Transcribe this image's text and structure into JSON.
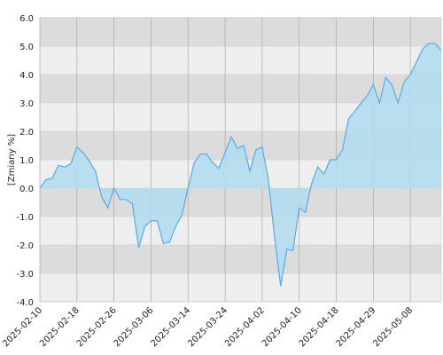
{
  "chart_data": {
    "type": "area",
    "ylabel": "[Zmiany %]",
    "categories": [
      "2025-02-10",
      null,
      null,
      null,
      null,
      null,
      "2025-02-18",
      null,
      null,
      null,
      null,
      null,
      "2025-02-26",
      null,
      null,
      null,
      null,
      null,
      "2025-03-06",
      null,
      null,
      null,
      null,
      null,
      "2025-03-14",
      null,
      null,
      null,
      null,
      null,
      "2025-03-24",
      null,
      null,
      null,
      null,
      null,
      "2025-04-02",
      null,
      null,
      null,
      null,
      null,
      "2025-04-10",
      null,
      null,
      null,
      null,
      null,
      "2025-04-18",
      null,
      null,
      null,
      null,
      null,
      "2025-04-29",
      null,
      null,
      null,
      null,
      null,
      "2025-05-08",
      null,
      null,
      null,
      null,
      null
    ],
    "values": [
      0.0,
      0.3,
      0.35,
      0.8,
      0.75,
      0.85,
      1.45,
      1.25,
      0.95,
      0.6,
      -0.3,
      -0.7,
      0.0,
      -0.4,
      -0.4,
      -0.55,
      -2.1,
      -1.35,
      -1.15,
      -1.15,
      -1.95,
      -1.9,
      -1.35,
      -0.95,
      0.0,
      0.9,
      1.2,
      1.2,
      0.9,
      0.7,
      1.25,
      1.8,
      1.4,
      1.5,
      0.6,
      1.35,
      1.45,
      0.3,
      -1.7,
      -3.45,
      -2.15,
      -2.2,
      -0.7,
      -0.85,
      0.15,
      0.75,
      0.5,
      1.0,
      1.0,
      1.35,
      2.45,
      2.7,
      3.0,
      3.25,
      3.65,
      3.0,
      3.9,
      3.65,
      3.0,
      3.75,
      4.0,
      4.45,
      4.9,
      5.1,
      5.1,
      4.85
    ],
    "color": "#5aaae6",
    "fill": "#b3dcee",
    "band_colors": [
      "#dcdcdc",
      "#eeeeee"
    ],
    "ylim": [
      -4,
      6
    ],
    "yticks": [
      {
        "value": 6,
        "label": "6.0"
      },
      {
        "value": 5,
        "label": "5.0"
      },
      {
        "value": 4,
        "label": "4.0"
      },
      {
        "value": 3,
        "label": "3.0"
      },
      {
        "value": 2,
        "label": "2.0"
      },
      {
        "value": 1,
        "label": "1.0"
      },
      {
        "value": 0,
        "label": "0.0"
      },
      {
        "value": -1,
        "label": "-1.0"
      },
      {
        "value": -2,
        "label": "-2.0"
      },
      {
        "value": -3,
        "label": "-3.0"
      },
      {
        "value": -4,
        "label": "-4.0"
      }
    ],
    "grid": true
  }
}
